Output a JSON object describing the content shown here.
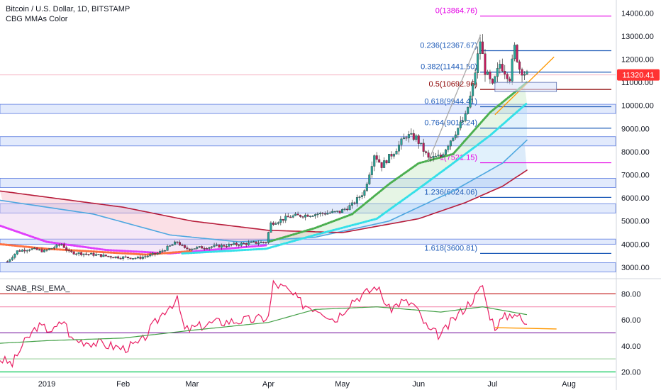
{
  "header": {
    "symbol_line": "Bitcoin / U.S. Dollar, 1D, BITSTAMP",
    "indicator_line": "CBG MMAs Color"
  },
  "sub_pane": {
    "indicator_label": "SNAB_RSI_EMA_"
  },
  "price_badge": {
    "value": "11320.41",
    "color": "#ff3333"
  },
  "colors": {
    "fib_line": "#1e5bb8",
    "fib_zero": "#e400e4",
    "fib_half": "#8b0000",
    "band_fill": "#dbe5fb",
    "band_stroke": "#5b7be0",
    "candle_up": "#26a69a",
    "candle_down": "#c2185b",
    "rsi": "#e91e63",
    "rsi_ema": "#43a047",
    "trend": "#ff9800"
  },
  "chart_data": [
    {
      "type": "candlestick",
      "title": "Bitcoin / U.S. Dollar, 1D, BITSTAMP",
      "x_axis": {
        "type": "date",
        "range": [
          "2018-12-13",
          "2019-08-20"
        ],
        "tick_labels": [
          "2019",
          "Feb",
          "Mar",
          "Apr",
          "May",
          "Jun",
          "Jul",
          "Aug"
        ],
        "tick_dates": [
          "2019-01-01",
          "2019-02-01",
          "2019-03-01",
          "2019-04-01",
          "2019-05-01",
          "2019-06-01",
          "2019-07-01",
          "2019-08-01"
        ]
      },
      "y_axis": {
        "range": [
          2600,
          14500
        ],
        "ticks": [
          3000,
          4000,
          5000,
          6000,
          7000,
          8000,
          9000,
          10000,
          11000,
          12000,
          13000,
          14000
        ],
        "tick_labels": [
          "3000.00",
          "4000.00",
          "5000.00",
          "6000.00",
          "7000.00",
          "8000.00",
          "9000.00",
          "10000.00",
          "11000.00",
          "12000.00",
          "13000.00",
          "14000.00"
        ],
        "position": "right"
      },
      "last_price": 11320.41,
      "price_path": [
        [
          "2018-12-16",
          3250
        ],
        [
          "2018-12-20",
          3700
        ],
        [
          "2018-12-25",
          3800
        ],
        [
          "2018-12-31",
          3700
        ],
        [
          "2019-01-07",
          4000
        ],
        [
          "2019-01-10",
          3650
        ],
        [
          "2019-01-20",
          3550
        ],
        [
          "2019-01-28",
          3450
        ],
        [
          "2019-02-07",
          3400
        ],
        [
          "2019-02-15",
          3600
        ],
        [
          "2019-02-23",
          4100
        ],
        [
          "2019-02-26",
          3800
        ],
        [
          "2019-03-10",
          3900
        ],
        [
          "2019-03-20",
          4000
        ],
        [
          "2019-03-31",
          4100
        ],
        [
          "2019-04-02",
          4900
        ],
        [
          "2019-04-10",
          5200
        ],
        [
          "2019-04-20",
          5300
        ],
        [
          "2019-04-30",
          5400
        ],
        [
          "2019-05-05",
          5700
        ],
        [
          "2019-05-10",
          6300
        ],
        [
          "2019-05-14",
          7900
        ],
        [
          "2019-05-17",
          7400
        ],
        [
          "2019-05-22",
          8000
        ],
        [
          "2019-05-27",
          8700
        ],
        [
          "2019-05-31",
          8600
        ],
        [
          "2019-06-05",
          7700
        ],
        [
          "2019-06-10",
          7800
        ],
        [
          "2019-06-15",
          8700
        ],
        [
          "2019-06-20",
          9500
        ],
        [
          "2019-06-23",
          10800
        ],
        [
          "2019-06-26",
          12800
        ],
        [
          "2019-06-28",
          11500
        ],
        [
          "2019-07-01",
          10800
        ],
        [
          "2019-07-04",
          11800
        ],
        [
          "2019-07-08",
          11200
        ],
        [
          "2019-07-10",
          12500
        ],
        [
          "2019-07-12",
          11600
        ],
        [
          "2019-07-15",
          11320
        ]
      ],
      "fib_levels": [
        {
          "label": "0(13864.76)",
          "value": 13864.76
        },
        {
          "label": "0.236(12367.67)",
          "value": 12367.67
        },
        {
          "label": "0.382(11441.50)",
          "value": 11441.5
        },
        {
          "label": "0.5(10692.96)",
          "value": 10692.96
        },
        {
          "label": "0.618(9944.41)",
          "value": 9944.41
        },
        {
          "label": "0.764(9018.24)",
          "value": 9018.24
        },
        {
          "label": "1(7521.15)",
          "value": 7521.15
        },
        {
          "label": "1.236(6024.06)",
          "value": 6024.06
        },
        {
          "label": "1.618(3600.81)",
          "value": 3600.81
        }
      ],
      "zones": [
        [
          9650,
          10050
        ],
        [
          8250,
          8650
        ],
        [
          6450,
          6850
        ],
        [
          5350,
          5750
        ],
        [
          4000,
          4220
        ],
        [
          2800,
          3200
        ]
      ],
      "series": [
        {
          "kind": "moving-average",
          "color": "#4ea7e0",
          "points": [
            [
              "2018-12-13",
              5900
            ],
            [
              "2019-01-20",
              5300
            ],
            [
              "2019-02-20",
              4400
            ],
            [
              "2019-03-20",
              4100
            ],
            [
              "2019-04-20",
              4300
            ],
            [
              "2019-05-20",
              5000
            ],
            [
              "2019-06-15",
              6300
            ],
            [
              "2019-07-05",
              7500
            ],
            [
              "2019-07-15",
              8500
            ]
          ]
        },
        {
          "kind": "moving-average",
          "color": "#b71c3a",
          "points": [
            [
              "2018-12-13",
              6300
            ],
            [
              "2019-02-01",
              5600
            ],
            [
              "2019-03-01",
              5000
            ],
            [
              "2019-04-01",
              4600
            ],
            [
              "2019-05-01",
              4500
            ],
            [
              "2019-06-01",
              5100
            ],
            [
              "2019-06-20",
              5800
            ],
            [
              "2019-07-05",
              6500
            ],
            [
              "2019-07-15",
              7200
            ]
          ]
        },
        {
          "kind": "moving-average",
          "color": "#e040fb",
          "points": [
            [
              "2018-12-13",
              4800
            ],
            [
              "2019-01-01",
              4100
            ],
            [
              "2019-01-25",
              3750
            ],
            [
              "2019-02-20",
              3600
            ],
            [
              "2019-03-31",
              3950
            ]
          ]
        },
        {
          "kind": "moving-average",
          "color": "#ff7043",
          "points": [
            [
              "2018-12-13",
              4000
            ],
            [
              "2019-01-01",
              3800
            ],
            [
              "2019-02-10",
              3550
            ],
            [
              "2019-03-01",
              3700
            ]
          ]
        },
        {
          "kind": "moving-average",
          "color": "#35e0e8",
          "points": [
            [
              "2019-02-25",
              3600
            ],
            [
              "2019-03-31",
              3800
            ],
            [
              "2019-04-20",
              4400
            ],
            [
              "2019-05-15",
              5100
            ],
            [
              "2019-06-01",
              6400
            ],
            [
              "2019-06-15",
              7500
            ],
            [
              "2019-06-30",
              8700
            ],
            [
              "2019-07-15",
              10100
            ]
          ]
        },
        {
          "kind": "moving-average",
          "color": "#4caf50",
          "points": [
            [
              "2019-04-01",
              4100
            ],
            [
              "2019-04-20",
              4700
            ],
            [
              "2019-05-05",
              5300
            ],
            [
              "2019-05-20",
              6600
            ],
            [
              "2019-06-01",
              7500
            ],
            [
              "2019-06-15",
              7900
            ],
            [
              "2019-06-30",
              9700
            ],
            [
              "2019-07-15",
              11000
            ]
          ]
        }
      ],
      "trend_lines": [
        {
          "color": "#ff9800",
          "points": [
            [
              "2019-07-02",
              9600
            ],
            [
              "2019-07-26",
              12100
            ]
          ]
        },
        {
          "color": "#aaaaaa",
          "points": [
            [
              "2019-06-05",
              7600
            ],
            [
              "2019-06-26",
              13000
            ]
          ]
        }
      ],
      "rectangle": {
        "from": "2019-07-02",
        "to": "2019-07-27",
        "low": 10600,
        "high": 11000
      }
    },
    {
      "type": "line",
      "title": "SNAB_RSI_EMA_",
      "y_axis": {
        "range": [
          17,
          90
        ],
        "ticks": [
          20,
          40,
          60,
          80
        ],
        "tick_labels": [
          "20.00",
          "40.00",
          "60.00",
          "80.00"
        ],
        "position": "right"
      },
      "hlines": [
        {
          "value": 80,
          "color": "#c62828"
        },
        {
          "value": 70,
          "color": "#f48fb1"
        },
        {
          "value": 50,
          "color": "#7b1fa2"
        },
        {
          "value": 30,
          "color": "#a5d6a7"
        },
        {
          "value": 20,
          "color": "#00c853"
        }
      ],
      "series": [
        {
          "kind": "rsi",
          "color": "#e91e63",
          "points": [
            [
              "2018-12-13",
              30
            ],
            [
              "2018-12-18",
              26
            ],
            [
              "2018-12-22",
              40
            ],
            [
              "2018-12-28",
              55
            ],
            [
              "2019-01-04",
              52
            ],
            [
              "2019-01-08",
              60
            ],
            [
              "2019-01-11",
              45
            ],
            [
              "2019-01-22",
              42
            ],
            [
              "2019-02-01",
              38
            ],
            [
              "2019-02-08",
              42
            ],
            [
              "2019-02-13",
              55
            ],
            [
              "2019-02-19",
              70
            ],
            [
              "2019-02-23",
              75
            ],
            [
              "2019-02-26",
              52
            ],
            [
              "2019-03-10",
              58
            ],
            [
              "2019-03-25",
              60
            ],
            [
              "2019-04-01",
              62
            ],
            [
              "2019-04-03",
              88
            ],
            [
              "2019-04-08",
              84
            ],
            [
              "2019-04-15",
              72
            ],
            [
              "2019-04-22",
              68
            ],
            [
              "2019-04-28",
              60
            ],
            [
              "2019-05-05",
              75
            ],
            [
              "2019-05-12",
              82
            ],
            [
              "2019-05-15",
              86
            ],
            [
              "2019-05-20",
              68
            ],
            [
              "2019-05-25",
              74
            ],
            [
              "2019-05-30",
              72
            ],
            [
              "2019-06-05",
              52
            ],
            [
              "2019-06-10",
              48
            ],
            [
              "2019-06-15",
              60
            ],
            [
              "2019-06-20",
              70
            ],
            [
              "2019-06-25",
              80
            ],
            [
              "2019-06-27",
              87
            ],
            [
              "2019-06-29",
              68
            ],
            [
              "2019-07-02",
              55
            ],
            [
              "2019-07-06",
              62
            ],
            [
              "2019-07-10",
              66
            ],
            [
              "2019-07-15",
              55
            ]
          ]
        },
        {
          "kind": "ema",
          "color": "#43a047",
          "points": [
            [
              "2018-12-13",
              42
            ],
            [
              "2019-01-01",
              44
            ],
            [
              "2019-02-01",
              46
            ],
            [
              "2019-03-01",
              52
            ],
            [
              "2019-04-01",
              58
            ],
            [
              "2019-04-20",
              68
            ],
            [
              "2019-05-15",
              70
            ],
            [
              "2019-06-10",
              66
            ],
            [
              "2019-06-27",
              70
            ],
            [
              "2019-07-15",
              64
            ]
          ]
        }
      ],
      "trend_lines": [
        {
          "color": "#ff9800",
          "points": [
            [
              "2019-07-02",
              54
            ],
            [
              "2019-07-27",
              53
            ]
          ]
        }
      ]
    }
  ]
}
